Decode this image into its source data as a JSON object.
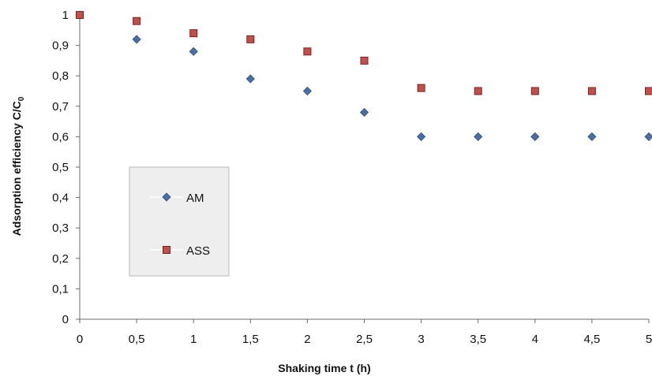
{
  "chart_data": {
    "type": "scatter",
    "xlabel": "Shaking time t (h)",
    "ylabel_main": "Adsorption efficiency  C/C",
    "ylabel_sub": "0",
    "xlim": [
      0,
      5
    ],
    "ylim": [
      0,
      1
    ],
    "x_ticks": [
      "0",
      "0,5",
      "1",
      "1,5",
      "2",
      "2,5",
      "3",
      "3,5",
      "4",
      "4,5",
      "5"
    ],
    "y_ticks": [
      "0",
      "0,1",
      "0,2",
      "0,3",
      "0,4",
      "0,5",
      "0,6",
      "0,7",
      "0,8",
      "0,9",
      "1"
    ],
    "grid": false,
    "legend_position": "lower-left",
    "x": [
      0,
      0.5,
      1,
      1.5,
      2,
      2.5,
      3,
      3.5,
      4,
      4.5,
      5
    ],
    "series": [
      {
        "name": "AM",
        "marker": "diamond",
        "color": "#4a6fa5",
        "values": [
          1.0,
          0.92,
          0.88,
          0.79,
          0.75,
          0.68,
          0.6,
          0.6,
          0.6,
          0.6,
          0.6
        ]
      },
      {
        "name": "ASS",
        "marker": "square",
        "color": "#c0504d",
        "values": [
          1.0,
          0.98,
          0.94,
          0.92,
          0.88,
          0.85,
          0.76,
          0.75,
          0.75,
          0.75,
          0.75
        ]
      }
    ]
  }
}
